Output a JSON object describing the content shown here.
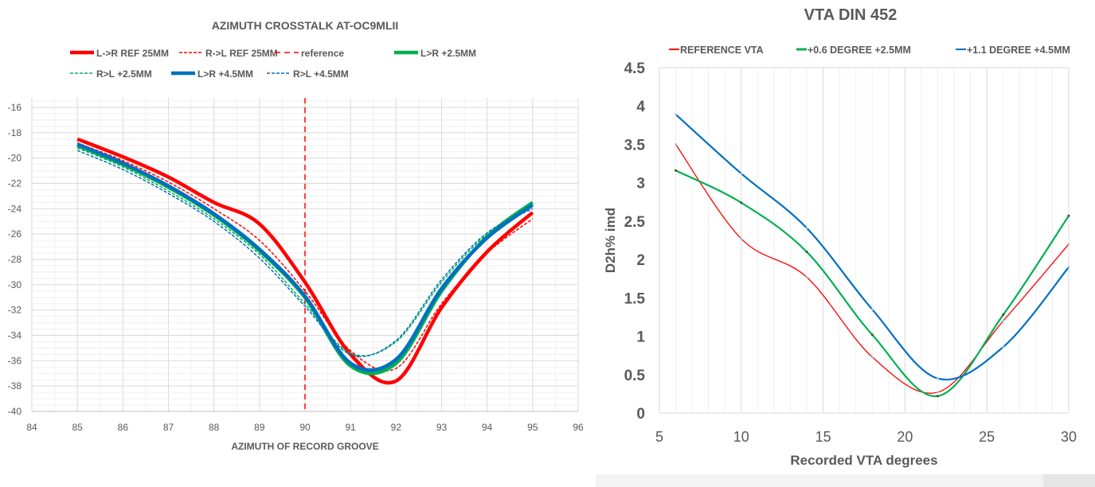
{
  "chart_data": [
    {
      "type": "line",
      "title": "AZIMUTH CROSSTALK AT-OC9MLII",
      "xlabel": "AZIMUTH OF RECORD GROOVE",
      "ylabel": "",
      "xlim": [
        84,
        96
      ],
      "ylim": [
        -40,
        -16
      ],
      "xticks": [
        84,
        85,
        86,
        87,
        88,
        89,
        90,
        91,
        92,
        93,
        94,
        95,
        96
      ],
      "yticks": [
        -16,
        -18,
        -20,
        -22,
        -24,
        -26,
        -28,
        -30,
        -32,
        -34,
        -36,
        -38,
        -40
      ],
      "grid": true,
      "legend": "top",
      "x": [
        85,
        86,
        87,
        88,
        89,
        90,
        91,
        92,
        93,
        94,
        95
      ],
      "series": [
        {
          "name": "L->R REF 25MM",
          "color": "#ff0000",
          "style": "solid-thick",
          "values": [
            -18.5,
            -19.9,
            -21.5,
            -23.5,
            -25.2,
            -29.8,
            -35.5,
            -37.6,
            -31.8,
            -27.4,
            -24.3
          ]
        },
        {
          "name": "R->L REF 25MM",
          "color": "#ff0000",
          "style": "dotted",
          "values": [
            -18.8,
            -20.2,
            -21.9,
            -24.0,
            -26.5,
            -30.5,
            -35.2,
            -36.6,
            -31.5,
            -27.5,
            -24.8
          ]
        },
        {
          "name": "reference",
          "color": "#ff0000",
          "style": "dashed",
          "vertical_x": 90
        },
        {
          "name": "L>R +2.5MM",
          "color": "#00b050",
          "style": "solid-thick",
          "values": [
            -19.0,
            -20.5,
            -22.3,
            -24.5,
            -27.3,
            -31.0,
            -36.4,
            -36.2,
            -30.5,
            -26.2,
            -23.5
          ]
        },
        {
          "name": "R>L +2.5MM",
          "color": "#00b050",
          "style": "dotted",
          "values": [
            -19.2,
            -20.7,
            -22.6,
            -24.8,
            -27.6,
            -31.5,
            -35.4,
            -34.5,
            -29.8,
            -26.0,
            -23.8
          ]
        },
        {
          "name": "L>R +4.5MM",
          "color": "#0070c0",
          "style": "solid-thick",
          "values": [
            -18.9,
            -20.4,
            -22.2,
            -24.4,
            -27.2,
            -30.9,
            -36.2,
            -35.9,
            -30.3,
            -26.3,
            -23.7
          ]
        },
        {
          "name": "R>L +4.5MM",
          "color": "#0070c0",
          "style": "dotted",
          "values": [
            -19.4,
            -20.9,
            -22.8,
            -25.0,
            -27.9,
            -31.7,
            -35.5,
            -34.4,
            -29.6,
            -25.9,
            -24.0
          ]
        }
      ]
    },
    {
      "type": "line",
      "title": "VTA DIN 452",
      "xlabel": "Recorded VTA degrees",
      "ylabel": "D2h% imd",
      "xlim": [
        5,
        30
      ],
      "ylim": [
        0,
        4.5
      ],
      "xticks": [
        5,
        10,
        15,
        20,
        25,
        30
      ],
      "yticks": [
        0,
        0.5,
        1,
        1.5,
        2,
        2.5,
        3,
        3.5,
        4,
        4.5
      ],
      "grid": true,
      "legend": "top",
      "x": [
        6,
        10,
        14,
        18,
        22,
        26,
        30
      ],
      "series": [
        {
          "name": "REFERENCE VTA",
          "color": "#ff0000",
          "values": [
            3.5,
            2.27,
            1.77,
            0.73,
            0.27,
            1.2,
            2.2
          ]
        },
        {
          "name": "+0.6 DEGREE +2.5MM",
          "color": "#00b050",
          "values": [
            3.16,
            2.74,
            2.1,
            1.02,
            0.22,
            1.28,
            2.57
          ]
        },
        {
          "name": "+1.1 DEGREE +4.5MM",
          "color": "#0070c0",
          "values": [
            3.89,
            3.12,
            2.41,
            1.35,
            0.45,
            0.86,
            1.9
          ]
        }
      ]
    }
  ]
}
